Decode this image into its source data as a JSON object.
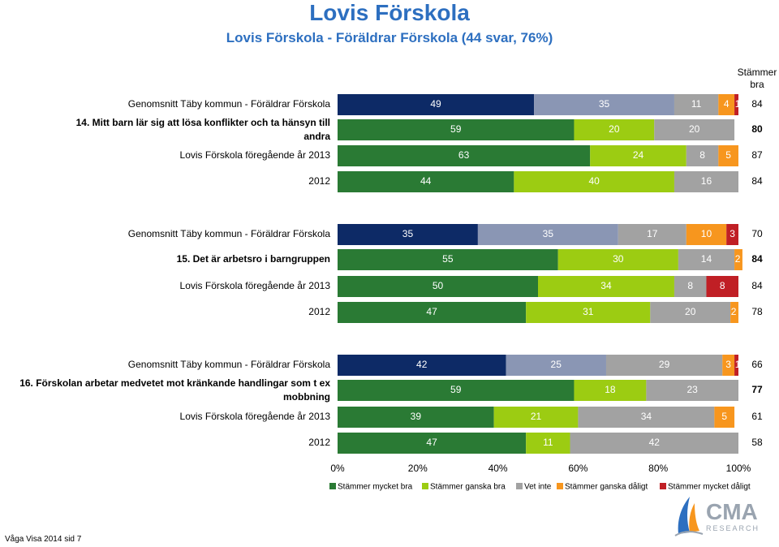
{
  "header": {
    "title": "Lovis Förskola",
    "subtitle": "Lovis Förskola - Föräldrar Förskola (44 svar, 76%)"
  },
  "summary_col_header": [
    "Stämmer",
    "bra"
  ],
  "footer": "Våga Visa 2014 sid 7",
  "logo": {
    "text": "CMA",
    "subtext": "RESEARCH",
    "icon": "sail-logo-icon"
  },
  "colors": {
    "Stämmer mycket bra": "#2a7a34",
    "Stämmer ganska bra": "#9ccc12",
    "Vet inte": "#a2a2a2",
    "Stämmer ganska dåligt": "#f7961e",
    "Stämmer mycket dåligt": "#c01f25",
    "avg_series": [
      "#0d2a66",
      "#8a96b4",
      "#a2a2a2",
      "#f7961e",
      "#c01f25"
    ]
  },
  "chart_data": {
    "type": "bar",
    "orientation": "horizontal",
    "stacked": true,
    "xlim": [
      0,
      100
    ],
    "x_ticks": [
      "0%",
      "20%",
      "40%",
      "60%",
      "80%",
      "100%"
    ],
    "legend": [
      "Stämmer mycket bra",
      "Stämmer ganska bra",
      "Vet inte",
      "Stämmer ganska dåligt",
      "Stämmer mycket dåligt"
    ],
    "legend_position": "bottom",
    "groups": [
      {
        "rows": [
          {
            "label": "Genomsnitt Täby kommun - Föräldrar Förskola",
            "bold": false,
            "avg": true,
            "values": [
              49,
              35,
              11,
              4,
              1
            ],
            "labels": [
              "49",
              "35",
              "11",
              "4",
              "1"
            ],
            "summary": "84",
            "summary_bold": false
          },
          {
            "label": "14. Mitt barn lär sig att lösa konflikter och ta hänsyn till andra",
            "bold": true,
            "avg": false,
            "values": [
              59,
              20,
              20,
              0,
              0
            ],
            "labels": [
              "59",
              "20",
              "20",
              "0",
              ""
            ],
            "summary": "80",
            "summary_bold": true
          },
          {
            "label": "Lovis Förskola föregående år 2013",
            "bold": false,
            "avg": false,
            "values": [
              63,
              24,
              8,
              5,
              0
            ],
            "labels": [
              "63",
              "24",
              "8",
              "5",
              "0"
            ],
            "summary": "87",
            "summary_bold": false
          },
          {
            "label": "2012",
            "bold": false,
            "avg": false,
            "values": [
              44,
              40,
              16,
              0,
              0
            ],
            "labels": [
              "44",
              "40",
              "16",
              "0",
              ""
            ],
            "summary": "84",
            "summary_bold": false
          }
        ]
      },
      {
        "rows": [
          {
            "label": "Genomsnitt Täby kommun - Föräldrar Förskola",
            "bold": false,
            "avg": true,
            "values": [
              35,
              35,
              17,
              10,
              3
            ],
            "labels": [
              "35",
              "35",
              "17",
              "10",
              "3"
            ],
            "summary": "70",
            "summary_bold": false
          },
          {
            "label": "15. Det är arbetsro i barngruppen",
            "bold": true,
            "avg": false,
            "values": [
              55,
              30,
              14,
              2,
              0
            ],
            "labels": [
              "55",
              "30",
              "14",
              "2",
              ""
            ],
            "summary": "84",
            "summary_bold": true
          },
          {
            "label": "Lovis Förskola föregående år 2013",
            "bold": false,
            "avg": false,
            "values": [
              50,
              34,
              8,
              0,
              8
            ],
            "labels": [
              "50",
              "34",
              "8",
              "0",
              "8"
            ],
            "summary": "84",
            "summary_bold": false
          },
          {
            "label": "2012",
            "bold": false,
            "avg": false,
            "values": [
              47,
              31,
              20,
              2,
              0
            ],
            "labels": [
              "47",
              "31",
              "20",
              "2",
              ""
            ],
            "summary": "78",
            "summary_bold": false
          }
        ]
      },
      {
        "rows": [
          {
            "label": "Genomsnitt Täby kommun - Föräldrar Förskola",
            "bold": false,
            "avg": true,
            "values": [
              42,
              25,
              29,
              3,
              1
            ],
            "labels": [
              "42",
              "25",
              "29",
              "3",
              "1"
            ],
            "summary": "66",
            "summary_bold": false
          },
          {
            "label": "16. Förskolan arbetar medvetet mot kränkande handlingar som t ex mobbning",
            "bold": true,
            "avg": false,
            "values": [
              59,
              18,
              23,
              0,
              0
            ],
            "labels": [
              "59",
              "18",
              "23",
              "0",
              ""
            ],
            "summary": "77",
            "summary_bold": true
          },
          {
            "label": "Lovis Förskola föregående år 2013",
            "bold": false,
            "avg": false,
            "values": [
              39,
              21,
              34,
              5,
              0
            ],
            "labels": [
              "39",
              "21",
              "34",
              "5",
              "0"
            ],
            "summary": "61",
            "summary_bold": false
          },
          {
            "label": "2012",
            "bold": false,
            "avg": false,
            "values": [
              47,
              11,
              42,
              0,
              0
            ],
            "labels": [
              "47",
              "11",
              "42",
              "0",
              ""
            ],
            "summary": "58",
            "summary_bold": false
          }
        ]
      }
    ]
  }
}
